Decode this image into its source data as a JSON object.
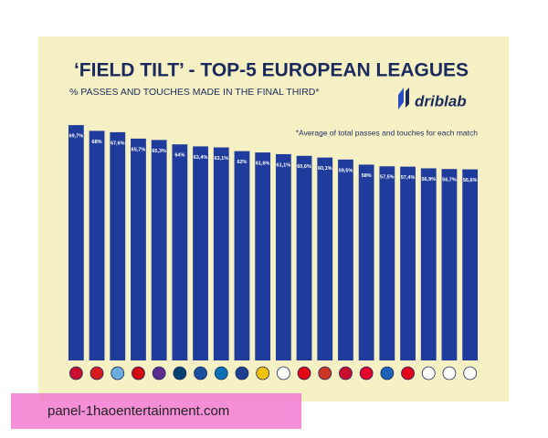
{
  "chart_data": {
    "type": "bar",
    "title": "‘FIELD TILT’ - TOP-5 EUROPEAN LEAGUES",
    "subtitle": "% PASSES AND TOUCHES MADE IN THE FINAL THIRD*",
    "brand": "driblab",
    "note": "*Average of total passes and touches for each match",
    "watermark": "panel-1haoentertainment.com",
    "categories": [
      null,
      null,
      null,
      null,
      null,
      null,
      null,
      null,
      null,
      null,
      null,
      null,
      null,
      null,
      null,
      null,
      null,
      null,
      null,
      null
    ],
    "values": [
      69.7,
      68,
      67.6,
      65.7,
      65.3,
      64,
      63.4,
      63.1,
      62,
      61.6,
      61.1,
      60.6,
      60.1,
      59.5,
      58,
      57.5,
      57.4,
      56.9,
      56.7,
      56.6
    ],
    "value_labels": [
      "69,7%",
      "68%",
      "67,6%",
      "65,7%",
      "65,3%",
      "64%",
      "63,4%",
      "63,1%",
      "62%",
      "61,6%",
      "61,1%",
      "60,6%",
      "60,1%",
      "59,5%",
      "58%",
      "57,5%",
      "57,4%",
      "56,9%",
      "56,7%",
      "56,6%"
    ],
    "color": "#1f3c9c",
    "ylim": [
      0,
      70
    ]
  }
}
